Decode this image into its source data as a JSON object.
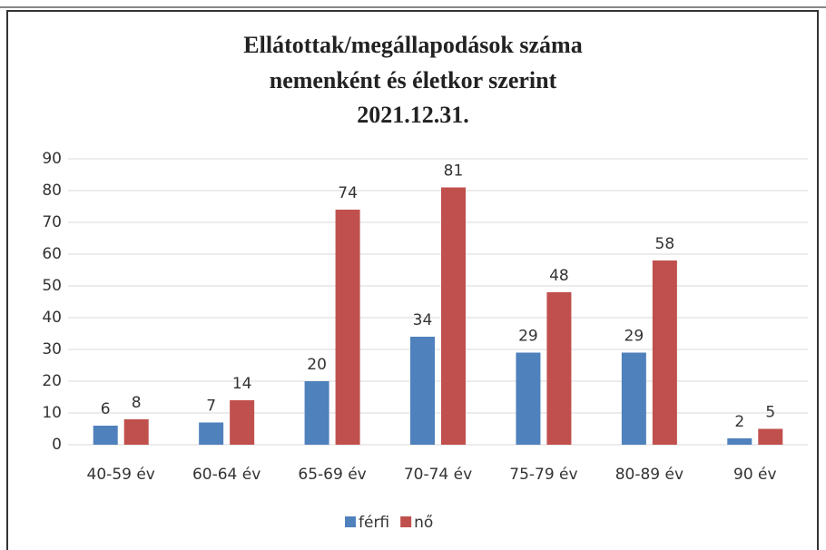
{
  "chart_data": {
    "type": "bar",
    "title": [
      "Ellátottak/megállapodások száma",
      "nemenként és életkor szerint",
      "2021.12.31."
    ],
    "categories": [
      "40-59 év",
      "60-64 év",
      "65-69 év",
      "70-74 év",
      "75-79 év",
      "80-89 év",
      "90 év"
    ],
    "series": [
      {
        "name": "férfi",
        "color": "#4f81bd",
        "values": [
          6,
          7,
          20,
          34,
          29,
          29,
          2
        ]
      },
      {
        "name": "nő",
        "color": "#c0504d",
        "values": [
          8,
          14,
          74,
          81,
          48,
          58,
          5
        ]
      }
    ],
    "ylim": [
      0,
      90
    ],
    "yticks": [
      0,
      10,
      20,
      30,
      40,
      50,
      60,
      70,
      80,
      90
    ],
    "grid": true,
    "legend": "bottom"
  }
}
